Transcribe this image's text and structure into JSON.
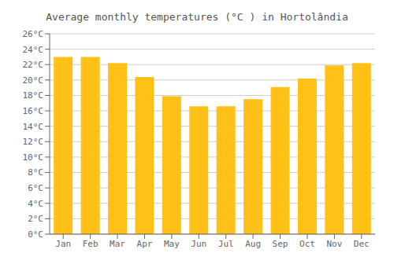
{
  "chart_data": {
    "type": "bar",
    "title": "Average monthly temperatures (°C ) in Hortolândia",
    "categories": [
      "Jan",
      "Feb",
      "Mar",
      "Apr",
      "May",
      "Jun",
      "Jul",
      "Aug",
      "Sep",
      "Oct",
      "Nov",
      "Dec"
    ],
    "values": [
      23.0,
      23.0,
      22.2,
      20.4,
      17.9,
      16.6,
      16.6,
      17.5,
      19.1,
      20.2,
      21.9,
      22.2
    ],
    "color": "#FFC017",
    "ylim": [
      0,
      26
    ],
    "yticks": [
      {
        "value": 0,
        "label": "0°C"
      },
      {
        "value": 2,
        "label": "2°C"
      },
      {
        "value": 4,
        "label": "4°C"
      },
      {
        "value": 6,
        "label": "6°C"
      },
      {
        "value": 8,
        "label": "8°C"
      },
      {
        "value": 10,
        "label": "10°C"
      },
      {
        "value": 12,
        "label": "12°C"
      },
      {
        "value": 14,
        "label": "14°C"
      },
      {
        "value": 16,
        "label": "16°C"
      },
      {
        "value": 18,
        "label": "18°C"
      },
      {
        "value": 20,
        "label": "20°C"
      },
      {
        "value": 22,
        "label": "22°C"
      },
      {
        "value": 24,
        "label": "24°C"
      },
      {
        "value": 26,
        "label": "26°C"
      }
    ],
    "grid": true
  }
}
